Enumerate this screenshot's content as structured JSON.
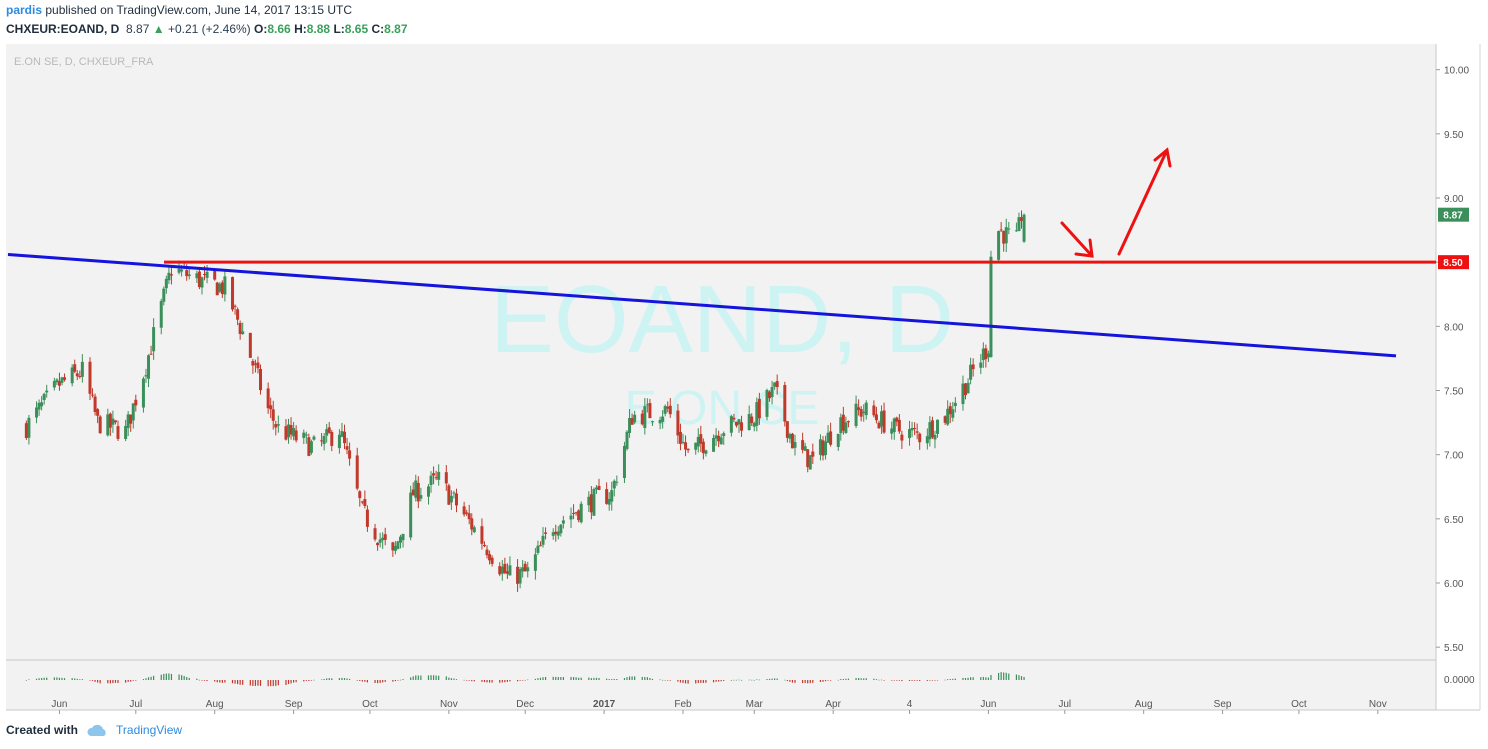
{
  "header": {
    "author": "pardis",
    "published_text": "published on TradingView.com, June 14, 2017 13:15 UTC",
    "symbol": "CHXEUR:EOAND, D",
    "last": "8.87",
    "change": "+0.21 (+2.46%)",
    "open_label": "O:",
    "open": "8.66",
    "high_label": "H:",
    "high": "8.88",
    "low_label": "L:",
    "low": "8.65",
    "close_label": "C:",
    "close": "8.87"
  },
  "footer": {
    "created_with": "Created with",
    "brand": "TradingView"
  },
  "colors": {
    "up": "#3b8f5a",
    "down": "#c0392b",
    "resistance": "#ee1111",
    "trendline": "#1414dd",
    "watermark": "#cdf3f3",
    "plot_bg": "#f2f2f2"
  },
  "chart_data": {
    "type": "candlestick",
    "title": "E.ON SE, D, CHXEUR_FRA",
    "watermark_symbol": "EOAND, D",
    "watermark_name": "E.ON SE",
    "ylim": [
      5.4,
      10.2
    ],
    "y_ticks": [
      "10.00",
      "9.50",
      "9.00",
      "8.50",
      "8.00",
      "7.50",
      "7.00",
      "6.50",
      "6.00",
      "5.50"
    ],
    "x_ticks": [
      "Jun",
      "Jul",
      "Aug",
      "Sep",
      "Oct",
      "Nov",
      "Dec",
      "2017",
      "Feb",
      "Mar",
      "Apr",
      "4",
      "Jun",
      "Jul",
      "Aug",
      "Sep",
      "Oct",
      "Nov"
    ],
    "last_price_label": "8.87",
    "horizontal_line": {
      "value": 8.5,
      "label": "8.50"
    },
    "oscillator_zero_label": "0.0000",
    "trendline": {
      "from": 8.56,
      "to": 7.77
    },
    "close_path": [
      [
        "2016-05-19",
        7.22
      ],
      [
        "2016-06-01",
        7.55
      ],
      [
        "2016-06-10",
        7.65
      ],
      [
        "2016-06-16",
        7.25
      ],
      [
        "2016-06-27",
        7.18
      ],
      [
        "2016-07-05",
        7.7
      ],
      [
        "2016-07-15",
        8.45
      ],
      [
        "2016-07-26",
        8.36
      ],
      [
        "2016-08-05",
        8.3
      ],
      [
        "2016-08-12",
        7.95
      ],
      [
        "2016-08-22",
        7.35
      ],
      [
        "2016-08-26",
        7.2
      ],
      [
        "2016-09-10",
        7.05
      ],
      [
        "2016-09-19",
        7.2
      ],
      [
        "2016-09-28",
        6.55
      ],
      [
        "2016-10-10",
        6.2
      ],
      [
        "2016-10-18",
        6.7
      ],
      [
        "2016-10-28",
        6.8
      ],
      [
        "2016-11-10",
        6.45
      ],
      [
        "2016-11-24",
        6.05
      ],
      [
        "2016-12-02",
        6.08
      ],
      [
        "2016-12-12",
        6.45
      ],
      [
        "2016-12-28",
        6.65
      ],
      [
        "2017-01-04",
        6.7
      ],
      [
        "2017-01-12",
        7.3
      ],
      [
        "2017-01-26",
        7.35
      ],
      [
        "2017-02-03",
        7.0
      ],
      [
        "2017-02-16",
        7.2
      ],
      [
        "2017-03-01",
        7.3
      ],
      [
        "2017-03-09",
        7.5
      ],
      [
        "2017-03-17",
        7.05
      ],
      [
        "2017-03-24",
        6.95
      ],
      [
        "2017-04-03",
        7.25
      ],
      [
        "2017-04-13",
        7.35
      ],
      [
        "2017-04-25",
        7.2
      ],
      [
        "2017-05-05",
        7.15
      ],
      [
        "2017-05-15",
        7.3
      ],
      [
        "2017-05-26",
        7.65
      ],
      [
        "2017-06-01",
        7.85
      ],
      [
        "2017-06-02",
        8.55
      ],
      [
        "2017-06-05",
        8.75
      ],
      [
        "2017-06-12",
        8.66
      ],
      [
        "2017-06-14",
        8.87
      ]
    ]
  }
}
